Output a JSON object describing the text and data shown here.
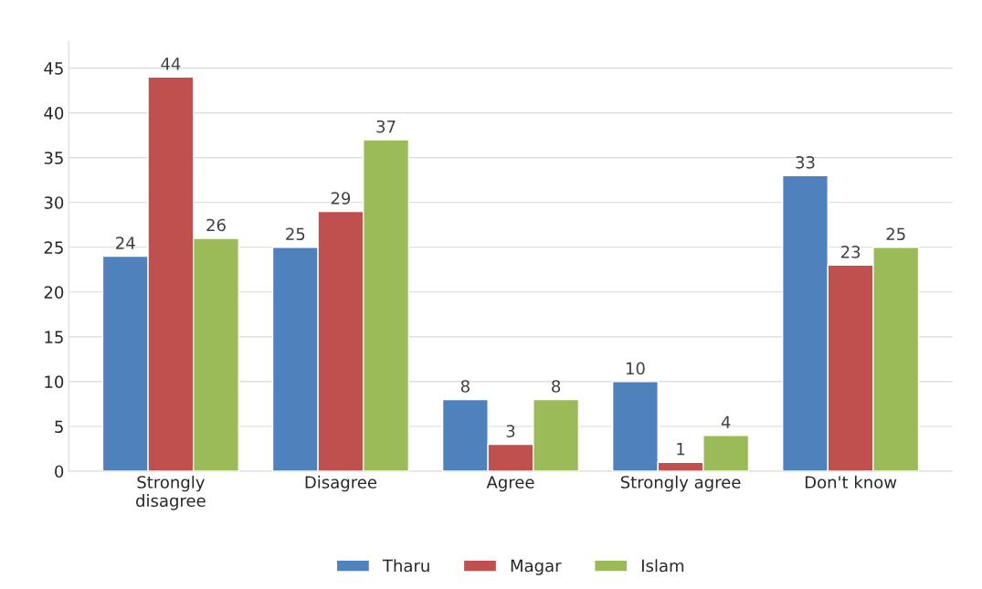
{
  "chart_data": {
    "type": "bar",
    "categories": [
      "Strongly\ndisagree",
      "Disagree",
      "Agree",
      "Strongly agree",
      "Don't know"
    ],
    "series": [
      {
        "name": "Tharu",
        "color": "#4f81bd",
        "values": [
          24,
          25,
          8,
          10,
          33
        ]
      },
      {
        "name": "Magar",
        "color": "#c0504d",
        "values": [
          44,
          29,
          3,
          1,
          23
        ]
      },
      {
        "name": "Islam",
        "color": "#9bbb59",
        "values": [
          26,
          37,
          8,
          4,
          25
        ]
      }
    ],
    "ylim": [
      0,
      48
    ],
    "yticks": [
      0,
      5,
      10,
      15,
      20,
      25,
      30,
      35,
      40,
      45
    ],
    "grid": "y",
    "legend": "bottom",
    "data_labels": true
  }
}
